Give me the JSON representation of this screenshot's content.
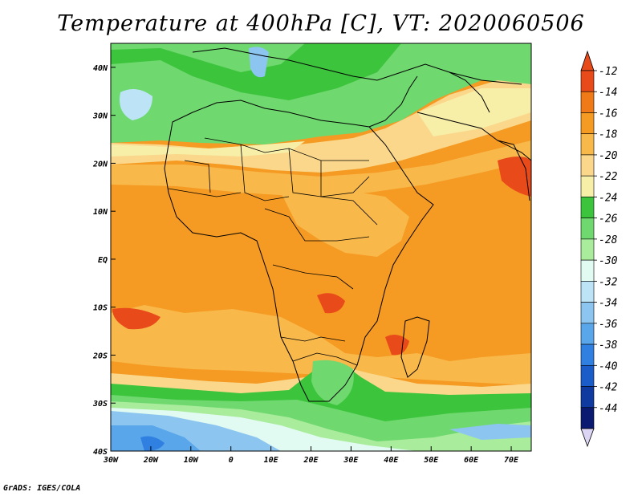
{
  "title": "Temperature at 400hPa [C], VT: 2020060506",
  "credit": "GrADS: IGES/COLA",
  "map": {
    "lon_range": [
      -30,
      75
    ],
    "lat_range": [
      -40,
      45
    ],
    "lon_ticks": [
      "30W",
      "20W",
      "10W",
      "0",
      "10E",
      "20E",
      "30E",
      "40E",
      "50E",
      "60E",
      "70E"
    ],
    "lat_ticks": [
      "40N",
      "30N",
      "20N",
      "10N",
      "EQ",
      "10S",
      "20S",
      "30S",
      "40S"
    ]
  },
  "colorbar": {
    "labels": [
      "-12",
      "-14",
      "-16",
      "-18",
      "-20",
      "-22",
      "-24",
      "-26",
      "-28",
      "-30",
      "-32",
      "-34",
      "-36",
      "-38",
      "-40",
      "-42",
      "-44"
    ],
    "colors": [
      "#e84a1a",
      "#f07a18",
      "#f59a22",
      "#f8b84a",
      "#fad78a",
      "#f7eea8",
      "#3cc43c",
      "#6fd86f",
      "#a8ec9c",
      "#e2fbf2",
      "#bce4f6",
      "#8cc6f0",
      "#5aa6ea",
      "#2f80e0",
      "#1a5cc8",
      "#0f3aa0",
      "#0a1a70"
    ]
  }
}
